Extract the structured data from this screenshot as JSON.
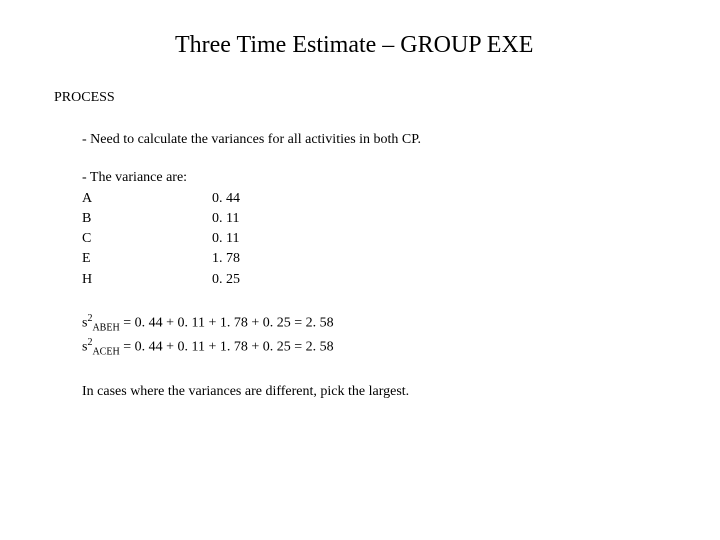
{
  "title": "Three Time Estimate – GROUP EXE",
  "section": "PROCESS",
  "intro": "- Need to calculate the variances for all activities in both CP.",
  "variance_header": "- The variance are:",
  "variances": [
    {
      "label": "A",
      "value": "0. 44"
    },
    {
      "label": "B",
      "value": "0. 11"
    },
    {
      "label": "C",
      "value": "0. 11"
    },
    {
      "label": "E",
      "value": "1. 78"
    },
    {
      "label": "H",
      "value": "0. 25"
    }
  ],
  "eq1": {
    "sym": "s",
    "sup": "2",
    "sub": "ABEH",
    "rhs": " = 0. 44 + 0. 11 + 1. 78 + 0. 25 = 2. 58"
  },
  "eq2": {
    "sym": "s",
    "sup": "2",
    "sub": "ACEH",
    "rhs": " = 0. 44 + 0. 11 + 1. 78 + 0. 25 = 2. 58"
  },
  "closing": "In cases where the variances are different, pick the largest."
}
